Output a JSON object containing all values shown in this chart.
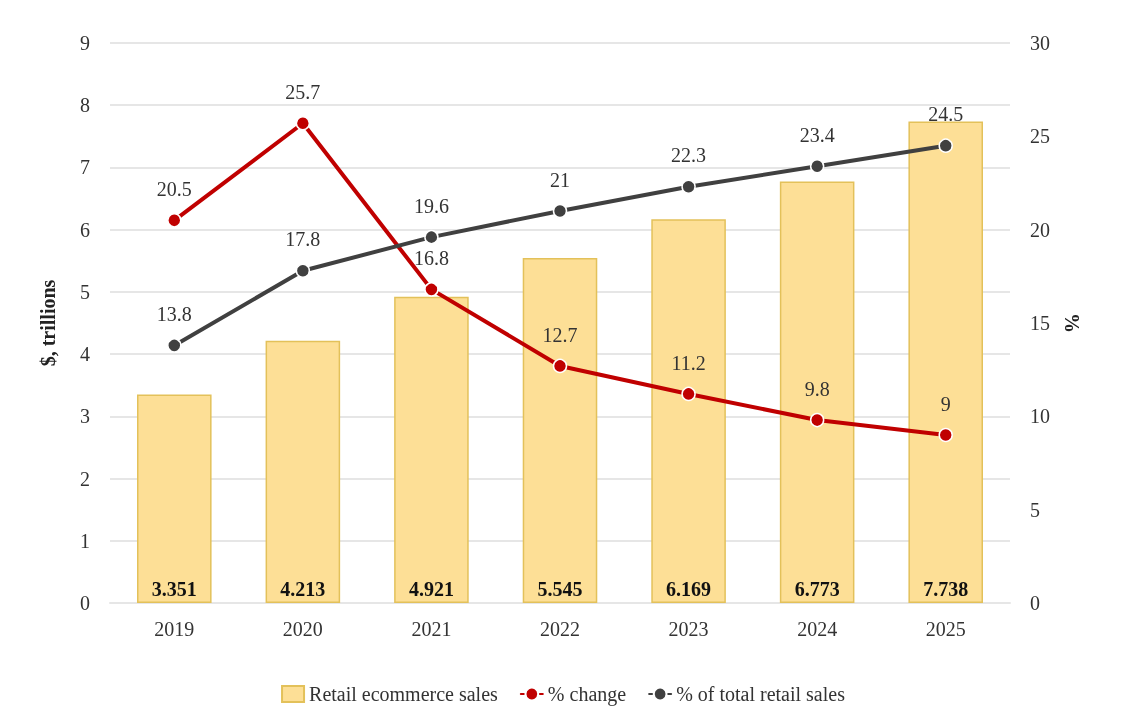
{
  "chart_data": {
    "type": "bar",
    "ylabel": "$, trillions",
    "y2label": "%",
    "categories": [
      "2019",
      "2020",
      "2021",
      "2022",
      "2023",
      "2024",
      "2025"
    ],
    "series": [
      {
        "name": "Retail ecommerce sales",
        "color": "#fddf96",
        "values": [
          3.351,
          4.213,
          4.921,
          5.545,
          6.169,
          6.773,
          7.738
        ]
      },
      {
        "name": "% change",
        "type": "line",
        "axis": "y2",
        "color": "#c00000",
        "values": [
          20.5,
          25.7,
          16.8,
          12.7,
          11.2,
          9.8,
          9
        ]
      },
      {
        "name": "% of total retail sales",
        "type": "line",
        "axis": "y2",
        "color": "#404040",
        "values": [
          13.8,
          17.8,
          19.6,
          21,
          22.3,
          23.4,
          24.5
        ]
      }
    ],
    "ylim": [
      0,
      9
    ],
    "yticks": [
      0,
      1,
      2,
      3,
      4,
      5,
      6,
      7,
      8,
      9
    ],
    "y2lim": [
      0,
      30
    ],
    "y2ticks": [
      0,
      5,
      10,
      15,
      20,
      25,
      30
    ],
    "data_labels": true,
    "grid": "y",
    "legend": "bottom",
    "marker": "circle",
    "line_style": "solid"
  }
}
